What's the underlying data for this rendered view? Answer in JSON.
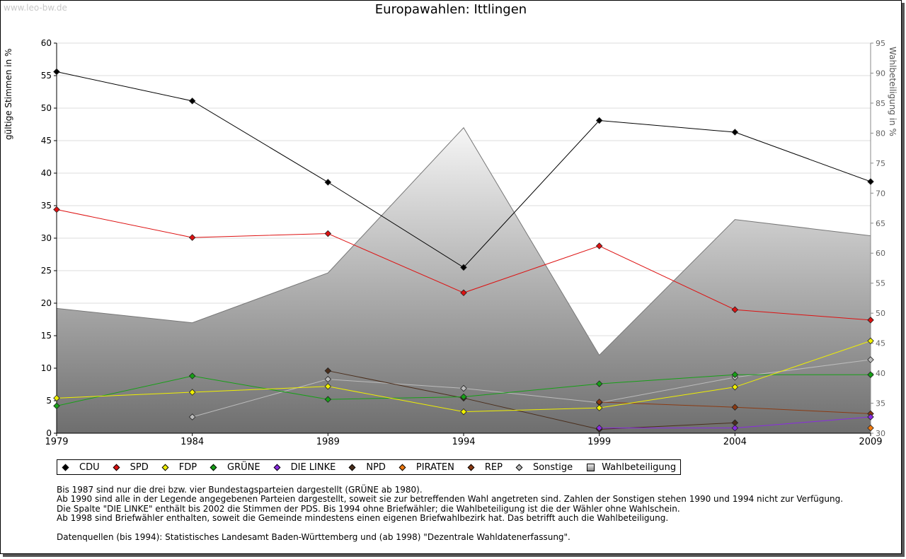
{
  "watermark": "www.leo-bw.de",
  "chart_data": {
    "type": "line",
    "title": "Europawahlen: Ittlingen",
    "ylabel": "gültige Stimmen in %",
    "y2label": "Wahlbeteiligung in %",
    "ylim": [
      0,
      60
    ],
    "y2lim": [
      30,
      95
    ],
    "yticks": [
      0,
      5,
      10,
      15,
      20,
      25,
      30,
      35,
      40,
      45,
      50,
      55,
      60
    ],
    "y2ticks": [
      30,
      35,
      40,
      45,
      50,
      55,
      60,
      65,
      70,
      75,
      80,
      85,
      90,
      95
    ],
    "categories": [
      "1979",
      "1984",
      "1989",
      "1994",
      "1999",
      "2004",
      "2009"
    ],
    "area": {
      "name": "Wahlbeteiligung",
      "axis": "right",
      "values": [
        50.8,
        48.4,
        56.7,
        80.9,
        43.0,
        65.6,
        62.9
      ]
    },
    "series": [
      {
        "name": "CDU",
        "color": "#000000",
        "values": [
          55.6,
          51.1,
          38.6,
          25.5,
          48.1,
          46.3,
          38.7
        ]
      },
      {
        "name": "SPD",
        "color": "#dd1111",
        "values": [
          34.4,
          30.1,
          30.7,
          21.6,
          28.8,
          19.0,
          17.4
        ]
      },
      {
        "name": "FDP",
        "color": "#f0f000",
        "values": [
          5.4,
          6.3,
          7.2,
          3.3,
          3.9,
          7.1,
          14.2
        ]
      },
      {
        "name": "GRÜNE",
        "color": "#16a016",
        "values": [
          4.2,
          8.8,
          5.2,
          5.6,
          7.6,
          9.0,
          9.0
        ]
      },
      {
        "name": "DIE LINKE",
        "color": "#8a2be2",
        "values": [
          null,
          null,
          null,
          null,
          0.8,
          0.8,
          2.5
        ]
      },
      {
        "name": "NPD",
        "color": "#4a2e1c",
        "values": [
          null,
          null,
          9.6,
          5.4,
          0.6,
          1.6,
          null
        ]
      },
      {
        "name": "PIRATEN",
        "color": "#f07a10",
        "values": [
          null,
          null,
          null,
          null,
          null,
          null,
          0.8
        ]
      },
      {
        "name": "REP",
        "color": "#8b3a12",
        "values": [
          null,
          null,
          null,
          null,
          4.8,
          4.0,
          3.0
        ]
      },
      {
        "name": "Sonstige",
        "color": "#bcbcbc",
        "values": [
          null,
          2.5,
          8.3,
          6.9,
          4.7,
          8.6,
          11.3
        ]
      }
    ],
    "legend": [
      "CDU",
      "SPD",
      "FDP",
      "GRÜNE",
      "DIE LINKE",
      "NPD",
      "PIRATEN",
      "REP",
      "Sonstige",
      "Wahlbeteiligung"
    ]
  },
  "legend_items": [
    {
      "label": "CDU",
      "color": "#000000"
    },
    {
      "label": "SPD",
      "color": "#dd1111"
    },
    {
      "label": "FDP",
      "color": "#f0f000"
    },
    {
      "label": "GRÜNE",
      "color": "#16a016"
    },
    {
      "label": "DIE LINKE",
      "color": "#8a2be2"
    },
    {
      "label": "NPD",
      "color": "#4a2e1c"
    },
    {
      "label": "PIRATEN",
      "color": "#f07a10"
    },
    {
      "label": "REP",
      "color": "#8b3a12"
    },
    {
      "label": "Sonstige",
      "color": "#bcbcbc"
    },
    {
      "label": "Wahlbeteiligung",
      "color": "#a0a0a0"
    }
  ],
  "notes": [
    "Bis 1987 sind nur die drei bzw. vier Bundestagsparteien dargestellt (GRÜNE ab 1980).",
    "Ab 1990 sind alle in der Legende angegebenen Parteien dargestellt, soweit sie zur betreffenden Wahl angetreten sind. Zahlen der Sonstigen stehen 1990 und 1994 nicht zur Verfügung.",
    "Die Spalte \"DIE LINKE\" enthält bis 2002 die Stimmen der PDS. Bis 1994 ohne Briefwähler; die Wahlbeteiligung ist die der Wähler ohne Wahlschein.",
    "Ab 1998 sind Briefwähler enthalten, soweit die Gemeinde mindestens einen eigenen Briefwahlbezirk hat. Das betrifft auch die Wahlbeteiligung."
  ],
  "source": "Datenquellen (bis 1994): Statistisches Landesamt Baden-Württemberg und (ab 1998) \"Dezentrale Wahldatenerfassung\"."
}
